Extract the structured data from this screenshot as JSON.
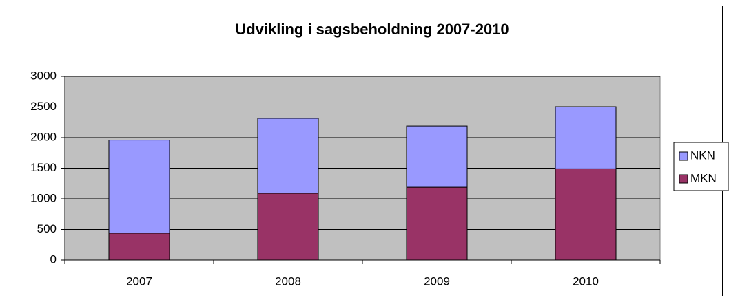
{
  "chart_data": {
    "type": "stacked_bar",
    "title": "Udvikling i sagsbeholdning 2007-2010",
    "categories": [
      "2007",
      "2008",
      "2009",
      "2010"
    ],
    "series": [
      {
        "name": "MKN",
        "color": "#993366",
        "values": [
          440,
          1090,
          1190,
          1490
        ]
      },
      {
        "name": "NKN",
        "color": "#9999ff",
        "values": [
          1520,
          1225,
          1000,
          1015
        ]
      }
    ],
    "ylim": [
      0,
      3000
    ],
    "yticks": [
      0,
      500,
      1000,
      1500,
      2000,
      2500,
      3000
    ],
    "grid": true,
    "legend": "right"
  }
}
